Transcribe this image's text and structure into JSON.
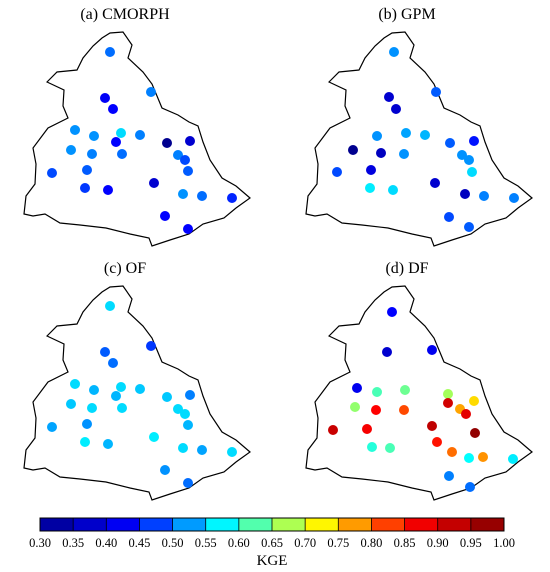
{
  "panels": [
    {
      "title": "(a) CMORPH",
      "stations": [
        {
          "kge": 0.5
        },
        {
          "kge": 0.51
        },
        {
          "kge": 0.43
        },
        {
          "kge": 0.44
        },
        {
          "kge": 0.52
        },
        {
          "kge": 0.52
        },
        {
          "kge": 0.56
        },
        {
          "kge": 0.51
        },
        {
          "kge": 0.44
        },
        {
          "kge": 0.3
        },
        {
          "kge": 0.38
        },
        {
          "kge": 0.52
        },
        {
          "kge": 0.51
        },
        {
          "kge": 0.5
        },
        {
          "kge": 0.51
        },
        {
          "kge": 0.48
        },
        {
          "kge": 0.49
        },
        {
          "kge": 0.48
        },
        {
          "kge": 0.49
        },
        {
          "kge": 0.38
        },
        {
          "kge": 0.52
        },
        {
          "kge": 0.47
        },
        {
          "kge": 0.44
        },
        {
          "kge": 0.5
        },
        {
          "kge": 0.46
        },
        {
          "kge": 0.44
        },
        {
          "kge": 0.44
        },
        {
          "kge": 0.46
        },
        {
          "kge": 0.4
        }
      ]
    },
    {
      "title": "(b) GPM",
      "stations": [
        {
          "kge": 0.52
        },
        {
          "kge": 0.49
        },
        {
          "kge": 0.38
        },
        {
          "kge": 0.38
        },
        {
          "kge": 0.52
        },
        {
          "kge": 0.53
        },
        {
          "kge": 0.54
        },
        {
          "kge": 0.49
        },
        {
          "kge": 0.45
        },
        {
          "kge": 0.3
        },
        {
          "kge": 0.36
        },
        {
          "kge": 0.52
        },
        {
          "kge": 0.52
        },
        {
          "kge": 0.52
        },
        {
          "kge": 0.56
        },
        {
          "kge": 0.48
        },
        {
          "kge": 0.4
        },
        {
          "kge": 0.38
        },
        {
          "kge": 0.36
        },
        {
          "kge": 0.57
        },
        {
          "kge": 0.56
        },
        {
          "kge": 0.51
        },
        {
          "kge": 0.51
        },
        {
          "kge": 0.48
        },
        {
          "kge": 0.49
        },
        {
          "kge": 0.52
        },
        {
          "kge": 0.48
        },
        {
          "kge": 0.52
        },
        {
          "kge": 0.46
        }
      ]
    },
    {
      "title": "(c) OF",
      "stations": [
        {
          "kge": 0.56
        },
        {
          "kge": 0.47
        },
        {
          "kge": 0.49
        },
        {
          "kge": 0.5
        },
        {
          "kge": 0.56
        },
        {
          "kge": 0.54
        },
        {
          "kge": 0.56
        },
        {
          "kge": 0.55
        },
        {
          "kge": 0.54
        },
        {
          "kge": 0.55
        },
        {
          "kge": 0.51
        },
        {
          "kge": 0.55
        },
        {
          "kge": 0.56
        },
        {
          "kge": 0.56
        },
        {
          "kge": 0.56
        },
        {
          "kge": 0.56
        },
        {
          "kge": 0.54
        },
        {
          "kge": 0.53
        },
        {
          "kge": 0.52
        },
        {
          "kge": 0.57
        },
        {
          "kge": 0.56
        },
        {
          "kge": 0.57
        },
        {
          "kge": 0.54
        },
        {
          "kge": 0.53
        },
        {
          "kge": 0.56
        },
        {
          "kge": 0.52
        },
        {
          "kge": 0.5
        },
        {
          "kge": 0.49
        },
        {
          "kge": 0.46
        }
      ]
    },
    {
      "title": "(d) DF",
      "stations": [
        {
          "kge": 0.44
        },
        {
          "kge": 0.38
        },
        {
          "kge": 0.42
        },
        {
          "kge": 0.42
        },
        {
          "kge": 0.62
        },
        {
          "kge": 0.64
        },
        {
          "kge": 0.67
        },
        {
          "kge": 0.74
        },
        {
          "kge": 0.66
        },
        {
          "kge": 0.86
        },
        {
          "kge": 0.82
        },
        {
          "kge": 0.91
        },
        {
          "kge": 0.77
        },
        {
          "kge": 0.89
        },
        {
          "kge": 0.93
        },
        {
          "kge": 0.92
        },
        {
          "kge": 0.87
        },
        {
          "kge": 0.98
        },
        {
          "kge": 0.85
        },
        {
          "kge": 0.6
        },
        {
          "kge": 0.62
        },
        {
          "kge": 0.8
        },
        {
          "kge": 0.58
        },
        {
          "kge": 0.78
        },
        {
          "kge": 0.57
        },
        {
          "kge": 0.51
        },
        {
          "kge": 0.5
        },
        {
          "kge": 0.42
        }
      ]
    }
  ],
  "colorbar": {
    "label": "KGE",
    "min": 0.3,
    "max": 1.0,
    "ticks": [
      "0.30",
      "0.35",
      "0.40",
      "0.45",
      "0.50",
      "0.55",
      "0.60",
      "0.65",
      "0.70",
      "0.75",
      "0.80",
      "0.85",
      "0.90",
      "0.95",
      "1.00"
    ],
    "colormap": "jet",
    "colors": [
      "#00008f",
      "#0000ff",
      "#00ffff",
      "#ffff00",
      "#ff0000",
      "#800000"
    ]
  }
}
